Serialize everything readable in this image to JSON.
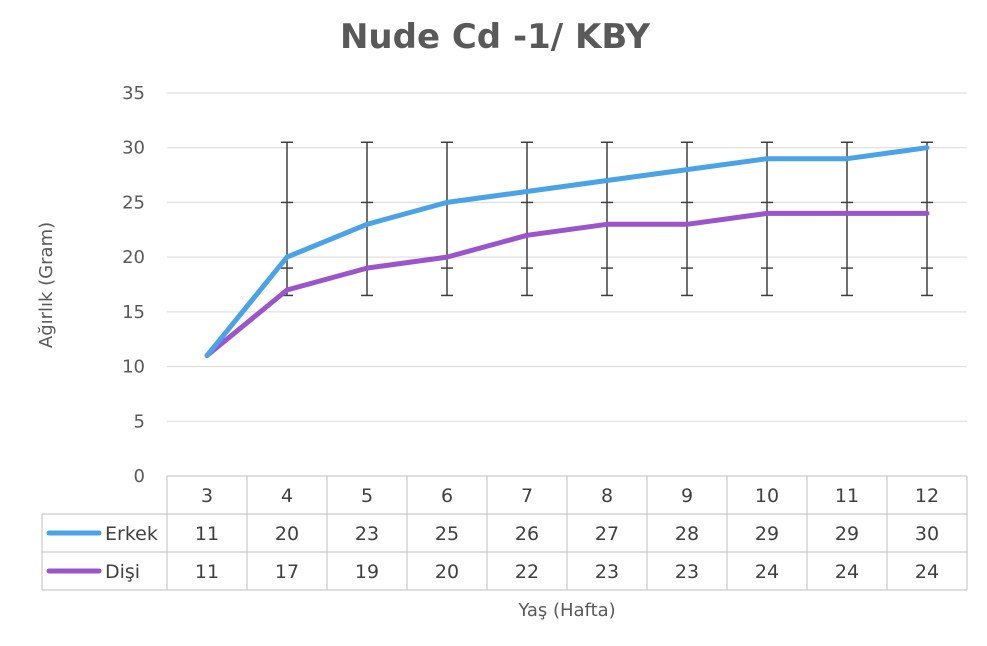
{
  "chart_data": {
    "type": "line",
    "title": "Nude Cd -1/ KBY",
    "xlabel": "Yaş (Hafta)",
    "ylabel": "Ağırlık (Gram)",
    "ylim": [
      0,
      35
    ],
    "yticks": [
      0,
      5,
      10,
      15,
      20,
      25,
      30,
      35
    ],
    "grid": true,
    "legend": "data-table-left",
    "categories": [
      "3",
      "4",
      "5",
      "6",
      "7",
      "8",
      "9",
      "10",
      "11",
      "12"
    ],
    "series": [
      {
        "name": "Erkek",
        "color": "#4aa3e6",
        "values": [
          11,
          20,
          23,
          25,
          26,
          27,
          28,
          29,
          29,
          30
        ]
      },
      {
        "name": "Dişi",
        "color": "#9b55cc",
        "values": [
          11,
          17,
          19,
          20,
          22,
          23,
          23,
          24,
          24,
          24
        ]
      }
    ],
    "error_bars": {
      "color": "#404040",
      "low": 16.5,
      "high": 30.5,
      "mid": [
        19,
        25
      ],
      "from_index": 1
    }
  }
}
